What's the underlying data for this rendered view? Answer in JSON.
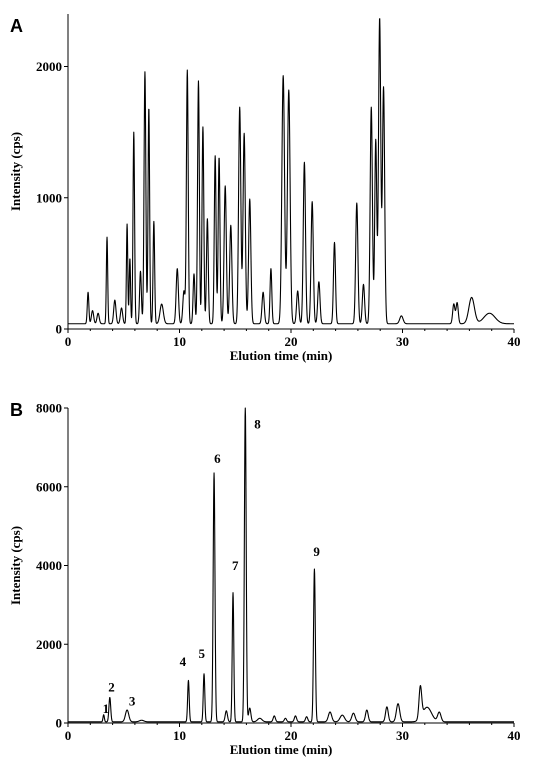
{
  "chart_data": [
    {
      "type": "line",
      "panel": "A",
      "xlabel": "Elution time (min)",
      "ylabel": "Intensity (cps)",
      "xlim": [
        0,
        40
      ],
      "ylim": [
        0,
        2400
      ],
      "xticks": [
        0,
        10,
        20,
        30,
        40
      ],
      "yticks": [
        0,
        1000,
        2000
      ],
      "baseline": 40,
      "peaks": [
        [
          1.8,
          240,
          0.07
        ],
        [
          2.2,
          100,
          0.1
        ],
        [
          2.7,
          80,
          0.1
        ],
        [
          3.5,
          660,
          0.06
        ],
        [
          4.2,
          180,
          0.1
        ],
        [
          4.8,
          120,
          0.1
        ],
        [
          5.3,
          760,
          0.06
        ],
        [
          5.55,
          500,
          0.06
        ],
        [
          5.9,
          1460,
          0.07
        ],
        [
          6.5,
          400,
          0.08
        ],
        [
          6.9,
          1920,
          0.08
        ],
        [
          7.25,
          1650,
          0.07
        ],
        [
          7.7,
          780,
          0.07
        ],
        [
          8.4,
          150,
          0.15
        ],
        [
          9.8,
          420,
          0.1
        ],
        [
          10.4,
          250,
          0.1
        ],
        [
          10.7,
          1930,
          0.08
        ],
        [
          11.3,
          380,
          0.08
        ],
        [
          11.7,
          1850,
          0.08
        ],
        [
          12.1,
          1500,
          0.08
        ],
        [
          12.5,
          800,
          0.08
        ],
        [
          13.2,
          1280,
          0.08
        ],
        [
          13.55,
          1270,
          0.08
        ],
        [
          14.1,
          1050,
          0.1
        ],
        [
          14.6,
          750,
          0.1
        ],
        [
          15.4,
          1650,
          0.1
        ],
        [
          15.8,
          1450,
          0.1
        ],
        [
          16.3,
          950,
          0.1
        ],
        [
          17.5,
          240,
          0.1
        ],
        [
          18.2,
          420,
          0.08
        ],
        [
          19.3,
          1890,
          0.12
        ],
        [
          19.8,
          1780,
          0.12
        ],
        [
          20.6,
          250,
          0.1
        ],
        [
          21.2,
          1230,
          0.1
        ],
        [
          21.9,
          930,
          0.1
        ],
        [
          22.5,
          320,
          0.1
        ],
        [
          23.9,
          620,
          0.09
        ],
        [
          25.9,
          920,
          0.1
        ],
        [
          26.5,
          300,
          0.1
        ],
        [
          27.2,
          1650,
          0.1
        ],
        [
          27.6,
          1400,
          0.09
        ],
        [
          27.95,
          2330,
          0.1
        ],
        [
          28.3,
          1800,
          0.1
        ],
        [
          29.9,
          60,
          0.15
        ],
        [
          34.6,
          150,
          0.1
        ],
        [
          34.9,
          160,
          0.1
        ],
        [
          36.2,
          200,
          0.25
        ],
        [
          37.8,
          80,
          0.5
        ]
      ]
    },
    {
      "type": "line",
      "panel": "B",
      "xlabel": "Elution time (min)",
      "ylabel": "Intensity (cps)",
      "xlim": [
        0,
        40
      ],
      "ylim": [
        0,
        8000
      ],
      "xticks": [
        0,
        10,
        20,
        30,
        40
      ],
      "yticks": [
        0,
        2000,
        4000,
        6000,
        8000
      ],
      "baseline": 30,
      "peaks": [
        [
          3.2,
          180,
          0.06
        ],
        [
          3.75,
          620,
          0.08
        ],
        [
          5.3,
          300,
          0.15
        ],
        [
          6.6,
          40,
          0.2
        ],
        [
          10.8,
          1050,
          0.07
        ],
        [
          12.2,
          1220,
          0.07
        ],
        [
          13.1,
          6320,
          0.08
        ],
        [
          14.2,
          280,
          0.1
        ],
        [
          14.8,
          3280,
          0.07
        ],
        [
          15.9,
          8000,
          0.08
        ],
        [
          16.3,
          350,
          0.1
        ],
        [
          17.2,
          90,
          0.2
        ],
        [
          18.5,
          150,
          0.1
        ],
        [
          19.5,
          90,
          0.1
        ],
        [
          20.4,
          150,
          0.1
        ],
        [
          21.4,
          130,
          0.1
        ],
        [
          22.1,
          3880,
          0.08
        ],
        [
          23.5,
          250,
          0.15
        ],
        [
          24.6,
          170,
          0.2
        ],
        [
          25.6,
          220,
          0.15
        ],
        [
          26.8,
          300,
          0.12
        ],
        [
          28.6,
          380,
          0.12
        ],
        [
          29.6,
          460,
          0.15
        ],
        [
          31.6,
          800,
          0.12
        ],
        [
          32.2,
          370,
          0.4
        ],
        [
          33.3,
          240,
          0.15
        ]
      ],
      "labels": [
        {
          "text": "1",
          "x": 3.4,
          "y": 250
        },
        {
          "text": "2",
          "x": 3.9,
          "y": 800
        },
        {
          "text": "3",
          "x": 5.75,
          "y": 450
        },
        {
          "text": "4",
          "x": 10.3,
          "y": 1450
        },
        {
          "text": "5",
          "x": 12.0,
          "y": 1650
        },
        {
          "text": "6",
          "x": 13.4,
          "y": 6600
        },
        {
          "text": "7",
          "x": 15.0,
          "y": 3880
        },
        {
          "text": "8",
          "x": 17.0,
          "y": 7480
        },
        {
          "text": "9",
          "x": 22.3,
          "y": 4240
        }
      ]
    }
  ],
  "panels": {
    "A": {
      "letter": "A"
    },
    "B": {
      "letter": "B"
    }
  }
}
